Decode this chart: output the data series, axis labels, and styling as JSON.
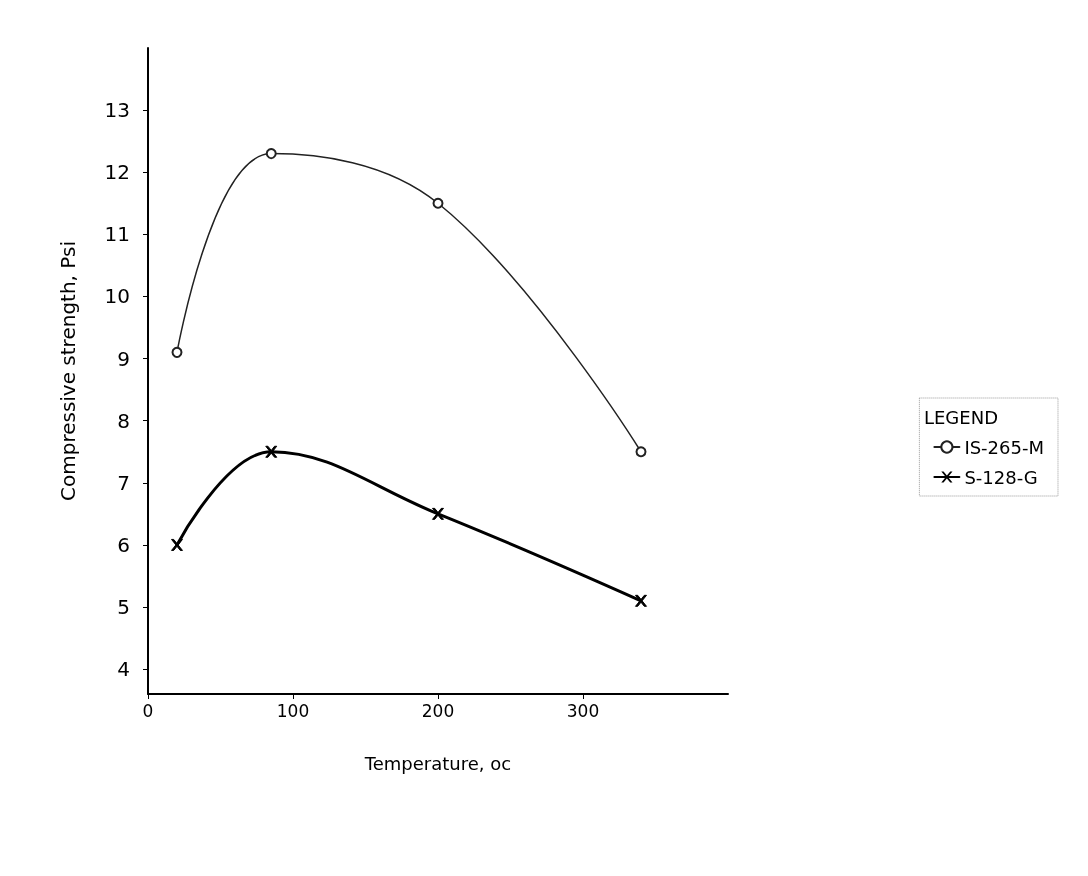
{
  "chart_data": {
    "type": "line",
    "xlabel": "Temperature, oc",
    "ylabel": "Compressive strength, Psi",
    "legend_title": "LEGEND",
    "legend": "right",
    "x": [
      20,
      85,
      200,
      340
    ],
    "series": [
      {
        "name": "IS-265-M",
        "color": "#222222",
        "values": [
          9.1,
          12.3,
          11.5,
          7.5
        ],
        "marker": "circle"
      },
      {
        "name": "S-128-G",
        "color": "#000000",
        "values": [
          6.0,
          7.5,
          6.5,
          5.1
        ],
        "marker": "cross"
      }
    ],
    "xlim": [
      0,
      400
    ],
    "xticks": [
      0,
      100,
      200,
      300
    ],
    "ylim": [
      3.6,
      14
    ],
    "yticks": [
      4,
      5,
      6,
      7,
      8,
      9,
      10,
      11,
      12,
      13
    ],
    "grid": false,
    "line_style": "solid"
  }
}
